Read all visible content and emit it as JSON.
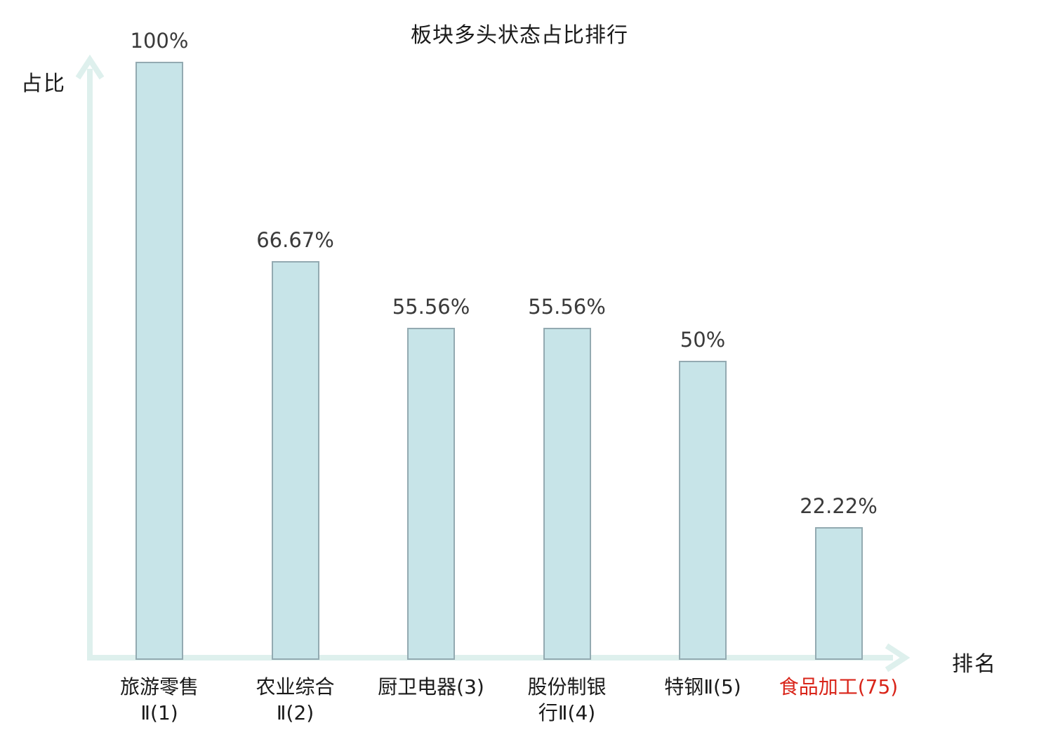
{
  "chart_data": {
    "type": "bar",
    "title": "板块多头状态占比排行",
    "xlabel": "排名",
    "ylabel": "占比",
    "ylim": [
      0,
      100
    ],
    "grid": false,
    "legend_position": "none",
    "categories": [
      "旅游零售Ⅱ(1)",
      "农业综合Ⅱ(2)",
      "厨卫电器(3)",
      "股份制银行Ⅱ(4)",
      "特钢Ⅱ(5)",
      "食品加工(75)"
    ],
    "values": [
      100,
      66.67,
      55.56,
      55.56,
      50,
      22.22
    ],
    "bars": [
      {
        "category": "旅游零售Ⅱ(1)",
        "category_display": "旅游零售\nⅡ(1)",
        "value": 100,
        "value_label": "100%",
        "highlight": false
      },
      {
        "category": "农业综合Ⅱ(2)",
        "category_display": "农业综合\nⅡ(2)",
        "value": 66.67,
        "value_label": "66.67%",
        "highlight": false
      },
      {
        "category": "厨卫电器(3)",
        "category_display": "厨卫电器(3)",
        "value": 55.56,
        "value_label": "55.56%",
        "highlight": false
      },
      {
        "category": "股份制银行Ⅱ(4)",
        "category_display": "股份制银\n行Ⅱ(4)",
        "value": 55.56,
        "value_label": "55.56%",
        "highlight": false
      },
      {
        "category": "特钢Ⅱ(5)",
        "category_display": "特钢Ⅱ(5)",
        "value": 50,
        "value_label": "50%",
        "highlight": false
      },
      {
        "category": "食品加工(75)",
        "category_display": "食品加工(75)",
        "value": 22.22,
        "value_label": "22.22%",
        "highlight": true
      }
    ],
    "colors": {
      "bar_fill": "#c7e4e8",
      "bar_border": "#93aab1",
      "axis": "#def0ed",
      "title_text": "#1a1a1a",
      "value_text": "#3a3a3a",
      "category_text": "#1a1a1a",
      "highlight_text": "#d9251a",
      "background": "#ffffff"
    }
  }
}
